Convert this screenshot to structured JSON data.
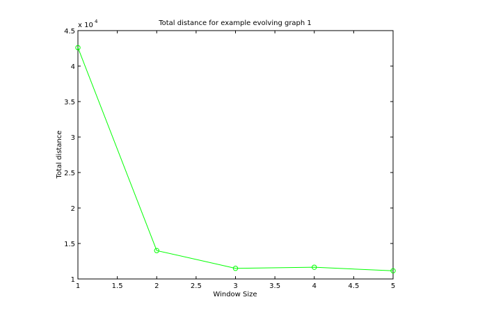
{
  "chart_data": {
    "type": "line",
    "title": "Total distance for example evolving graph 1",
    "xlabel": "Window Size",
    "ylabel": "Total distance",
    "y_multiplier_label": "x 10",
    "y_multiplier_exponent": "4",
    "xlim": [
      1,
      5
    ],
    "ylim": [
      1,
      4.5
    ],
    "x_ticks": [
      "1",
      "1.5",
      "2",
      "2.5",
      "3",
      "3.5",
      "4",
      "4.5",
      "5"
    ],
    "y_ticks": [
      "1",
      "1.5",
      "2",
      "2.5",
      "3",
      "3.5",
      "4",
      "4.5"
    ],
    "grid": false,
    "series": [
      {
        "color": "#00ff00",
        "marker": "circle",
        "x": [
          1,
          2,
          3,
          4,
          5
        ],
        "y": [
          42600,
          14000,
          11500,
          11650,
          11150
        ]
      }
    ]
  }
}
